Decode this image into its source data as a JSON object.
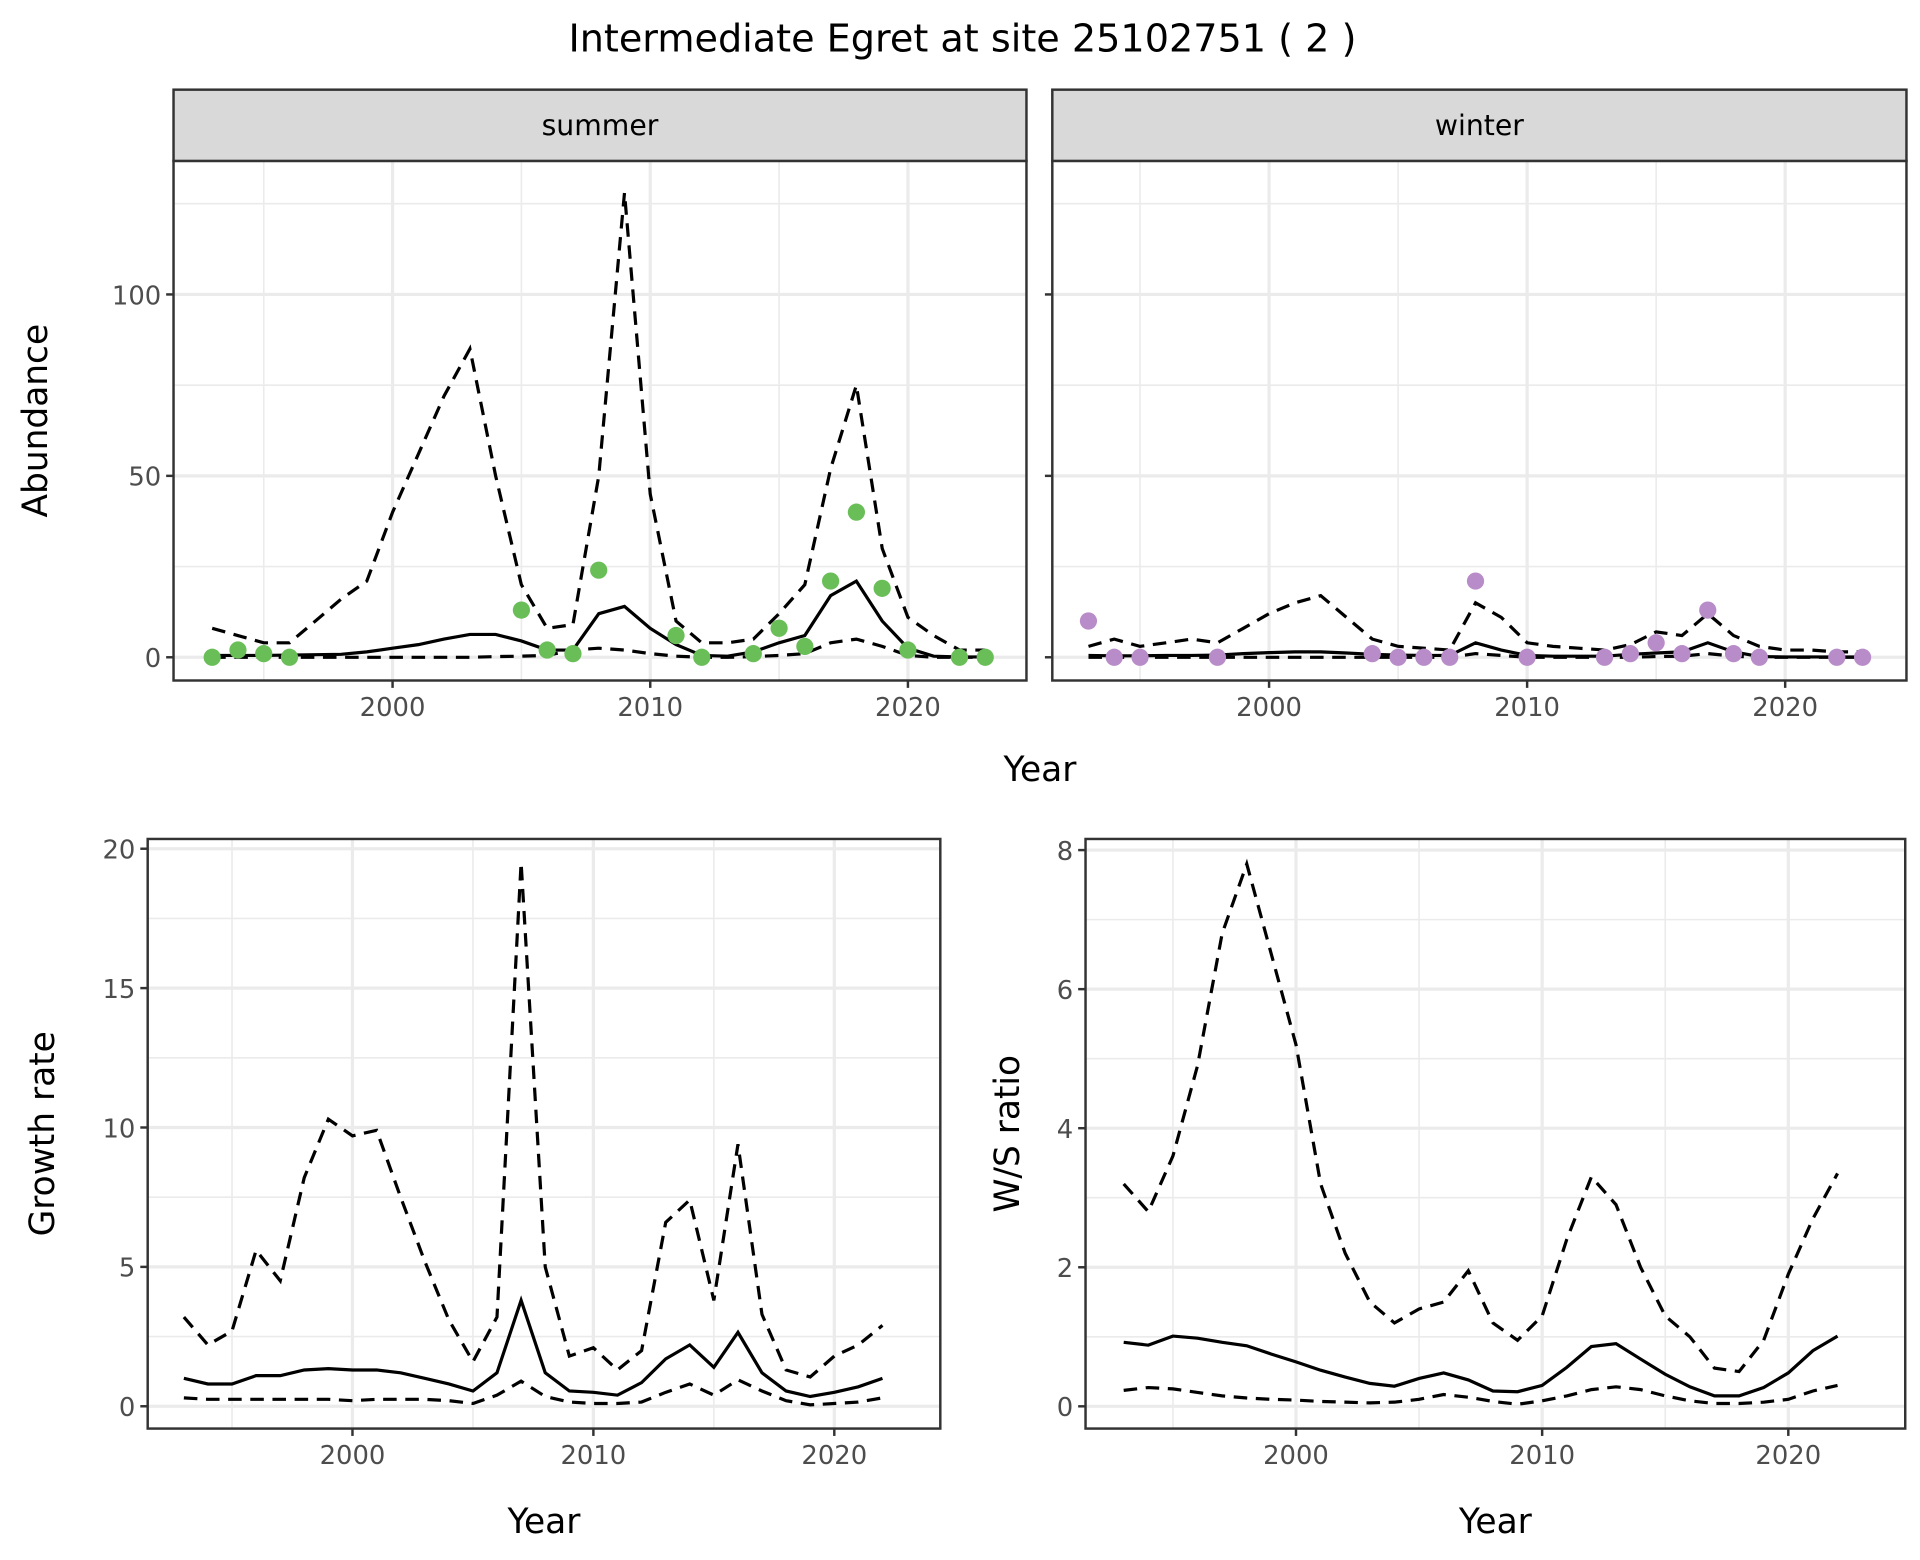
{
  "chart_data": {
    "title": "Intermediate Egret at site 25102751 ( 2 )",
    "colors": {
      "summer_points": "#6abe58",
      "winter_points": "#b88cc8",
      "line": "#000000",
      "strip_bg": "#d9d9d9",
      "grid": "#ebebeb"
    },
    "panels": [
      {
        "id": "summer",
        "type": "line",
        "strip": "summer",
        "ylabel": "Abundance",
        "xlabel": "",
        "xlim": [
          1991.5,
          2024.6
        ],
        "ylim": [
          -6.4,
          136.8
        ],
        "xticks": [
          2000,
          2010,
          2020
        ],
        "yticks": [
          0,
          50,
          100
        ],
        "xtick_labels": [
          "2000",
          "2010",
          "2020"
        ],
        "ytick_labels": [
          "0",
          "50",
          "100"
        ],
        "years": [
          1993,
          1994,
          1995,
          1996,
          1997,
          1998,
          1999,
          2000,
          2001,
          2002,
          2003,
          2004,
          2005,
          2006,
          2007,
          2008,
          2009,
          2010,
          2011,
          2012,
          2013,
          2014,
          2015,
          2016,
          2017,
          2018,
          2019,
          2020,
          2021,
          2022,
          2023
        ],
        "mean": [
          0.5,
          0.5,
          0.5,
          0.6,
          0.7,
          0.8,
          1.5,
          2.5,
          3.5,
          5,
          6.3,
          6.3,
          4.5,
          2,
          2,
          12,
          14,
          8,
          3.5,
          0.5,
          0.3,
          1.5,
          4,
          6,
          17,
          21,
          10,
          2.5,
          0.3,
          0.1,
          0.1
        ],
        "upper": [
          8,
          6,
          4,
          4,
          10,
          16,
          21,
          40,
          56,
          72,
          85,
          50,
          20,
          8,
          9,
          50,
          128,
          45,
          10,
          4,
          4,
          5,
          12,
          20,
          52,
          75,
          30,
          11,
          6,
          2,
          2
        ],
        "lower": [
          0,
          0,
          0,
          0,
          0,
          0,
          0,
          0,
          0,
          0,
          0,
          0.2,
          0.3,
          0.5,
          2,
          2.5,
          2,
          1,
          0.3,
          0,
          0,
          0.2,
          0.5,
          1,
          4,
          5,
          3,
          0.5,
          0,
          0,
          0
        ],
        "points": {
          "years": [
            1993,
            1994,
            1995,
            1996,
            2005,
            2006,
            2007,
            2008,
            2011,
            2012,
            2014,
            2015,
            2016,
            2017,
            2018,
            2019,
            2020,
            2022,
            2023
          ],
          "values": [
            0,
            2,
            1,
            0,
            13,
            2,
            1,
            24,
            6,
            0,
            1,
            8,
            3,
            21,
            40,
            19,
            2,
            0,
            0
          ]
        }
      },
      {
        "id": "winter",
        "type": "line",
        "strip": "winter",
        "ylabel": "",
        "xlabel": "",
        "xlim": [
          1991.6,
          2024.7
        ],
        "ylim": [
          -6.4,
          136.8
        ],
        "xticks": [
          2000,
          2010,
          2020
        ],
        "yticks": [
          0,
          50,
          100
        ],
        "xtick_labels": [
          "2000",
          "2010",
          "2020"
        ],
        "ytick_labels": [],
        "years": [
          1993,
          1994,
          1995,
          1996,
          1997,
          1998,
          1999,
          2000,
          2001,
          2002,
          2003,
          2004,
          2005,
          2006,
          2007,
          2008,
          2009,
          2010,
          2011,
          2012,
          2013,
          2014,
          2015,
          2016,
          2017,
          2018,
          2019,
          2020,
          2021,
          2022,
          2023
        ],
        "mean": [
          0.5,
          0.4,
          0.4,
          0.5,
          0.5,
          0.6,
          1,
          1.3,
          1.5,
          1.5,
          1.2,
          0.8,
          0.6,
          0.5,
          0.5,
          4,
          2,
          0.5,
          0.3,
          0.3,
          0.3,
          0.8,
          1.2,
          1.5,
          4,
          1.5,
          0.2,
          0.1,
          0.1,
          0.1,
          0.1
        ],
        "upper": [
          3,
          5,
          3,
          4,
          5,
          4,
          8,
          12,
          15,
          17,
          11,
          5,
          3,
          2.5,
          2,
          15,
          11,
          4,
          3,
          2.5,
          2,
          3.5,
          7,
          6,
          12,
          6,
          3,
          2,
          2,
          1.5,
          1.5
        ],
        "lower": [
          0,
          0,
          0,
          0,
          0,
          0,
          0,
          0,
          0,
          0,
          0,
          0,
          0,
          0,
          0,
          1,
          0.5,
          0,
          0,
          0,
          0,
          0,
          0.2,
          0.3,
          1,
          0.3,
          0,
          0,
          0,
          0,
          0
        ],
        "points": {
          "years": [
            1993,
            1994,
            1995,
            1998,
            2004,
            2005,
            2006,
            2007,
            2008,
            2010,
            2013,
            2014,
            2015,
            2016,
            2017,
            2018,
            2019,
            2022,
            2023
          ],
          "values": [
            10,
            0,
            0,
            0,
            1,
            0,
            0,
            0,
            21,
            0,
            0,
            1,
            4,
            1,
            13,
            1,
            0,
            0,
            0
          ]
        }
      },
      {
        "id": "growth",
        "type": "line",
        "ylabel": "Growth rate",
        "xlabel": "Year",
        "xlim": [
          1991.5,
          2024.4
        ],
        "ylim": [
          -0.8,
          20.35
        ],
        "xticks": [
          2000,
          2010,
          2020
        ],
        "yticks": [
          0,
          5,
          10,
          15,
          20
        ],
        "xtick_labels": [
          "2000",
          "2010",
          "2020"
        ],
        "ytick_labels": [
          "0",
          "5",
          "10",
          "15",
          "20"
        ],
        "years": [
          1993,
          1994,
          1995,
          1996,
          1997,
          1998,
          1999,
          2000,
          2001,
          2002,
          2003,
          2004,
          2005,
          2006,
          2007,
          2008,
          2009,
          2010,
          2011,
          2012,
          2013,
          2014,
          2015,
          2016,
          2017,
          2018,
          2019,
          2020,
          2021,
          2022
        ],
        "mean": [
          1,
          0.8,
          0.8,
          1.1,
          1.1,
          1.3,
          1.35,
          1.3,
          1.3,
          1.2,
          1,
          0.8,
          0.55,
          1.2,
          3.8,
          1.2,
          0.55,
          0.5,
          0.4,
          0.85,
          1.7,
          2.2,
          1.4,
          2.65,
          1.2,
          0.55,
          0.35,
          0.5,
          0.7,
          1.0
        ],
        "upper": [
          3.2,
          2.2,
          2.7,
          5.6,
          4.5,
          8.2,
          10.3,
          9.7,
          9.9,
          7.5,
          5.2,
          3.1,
          1.6,
          3.2,
          19.5,
          5,
          1.8,
          2.1,
          1.3,
          2,
          6.6,
          7.4,
          3.8,
          9.4,
          3.3,
          1.3,
          1.05,
          1.8,
          2.2,
          2.9
        ],
        "lower": [
          0.3,
          0.25,
          0.25,
          0.25,
          0.25,
          0.25,
          0.25,
          0.2,
          0.25,
          0.25,
          0.25,
          0.2,
          0.1,
          0.4,
          0.9,
          0.35,
          0.15,
          0.1,
          0.1,
          0.15,
          0.5,
          0.8,
          0.4,
          0.95,
          0.55,
          0.2,
          0.05,
          0.1,
          0.15,
          0.3
        ]
      },
      {
        "id": "ws",
        "type": "line",
        "ylabel": "W/S ratio",
        "xlabel": "Year",
        "xlim": [
          1991.45,
          2024.75
        ],
        "ylim": [
          -0.32,
          8.16
        ],
        "xticks": [
          2000,
          2010,
          2020
        ],
        "yticks": [
          0,
          2,
          4,
          6,
          8
        ],
        "xtick_labels": [
          "2000",
          "2010",
          "2020"
        ],
        "ytick_labels": [
          "0",
          "2",
          "4",
          "6",
          "8"
        ],
        "years": [
          1993,
          1994,
          1995,
          1996,
          1997,
          1998,
          1999,
          2000,
          2001,
          2002,
          2003,
          2004,
          2005,
          2006,
          2007,
          2008,
          2009,
          2010,
          2011,
          2012,
          2013,
          2014,
          2015,
          2016,
          2017,
          2018,
          2019,
          2020,
          2021,
          2022
        ],
        "mean": [
          0.92,
          0.88,
          1.01,
          0.98,
          0.92,
          0.87,
          0.75,
          0.64,
          0.52,
          0.42,
          0.33,
          0.29,
          0.4,
          0.48,
          0.38,
          0.22,
          0.21,
          0.3,
          0.56,
          0.86,
          0.9,
          0.68,
          0.46,
          0.28,
          0.15,
          0.15,
          0.27,
          0.48,
          0.8,
          1.01
        ],
        "upper": [
          3.2,
          2.8,
          3.6,
          4.9,
          6.8,
          7.8,
          6.5,
          5.2,
          3.2,
          2.2,
          1.5,
          1.2,
          1.4,
          1.5,
          1.95,
          1.2,
          0.95,
          1.3,
          2.4,
          3.3,
          2.9,
          2.0,
          1.3,
          1.0,
          0.55,
          0.5,
          0.95,
          1.9,
          2.7,
          3.35
        ],
        "lower": [
          0.23,
          0.27,
          0.25,
          0.2,
          0.15,
          0.12,
          0.1,
          0.09,
          0.07,
          0.06,
          0.05,
          0.06,
          0.1,
          0.17,
          0.13,
          0.07,
          0.03,
          0.08,
          0.15,
          0.24,
          0.28,
          0.24,
          0.15,
          0.08,
          0.04,
          0.04,
          0.06,
          0.1,
          0.22,
          0.3
        ]
      }
    ],
    "shared_xlabel_top": "Year"
  }
}
